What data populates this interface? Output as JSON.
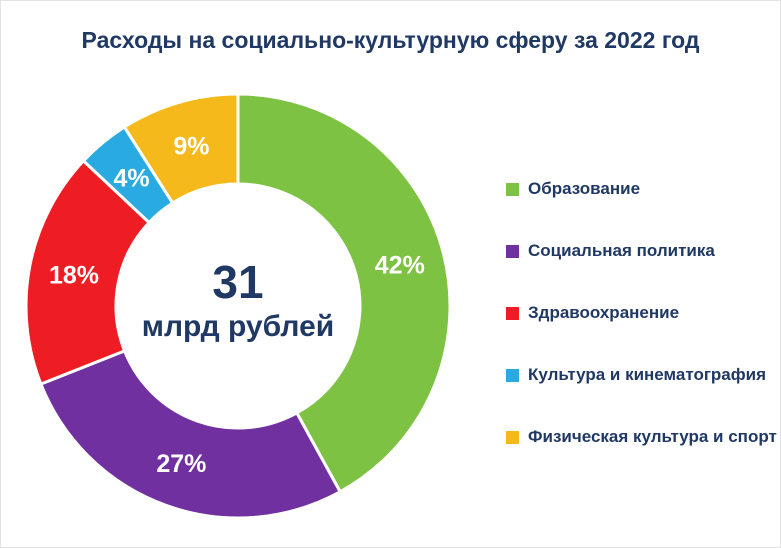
{
  "page": {
    "title": "Расходы на социально-культурную сферу за 2022 год",
    "title_color": "#203864",
    "background": "#ffffff"
  },
  "chart_data": {
    "type": "pie",
    "subtype": "donut",
    "title": "Расходы на социально-культурную сферу за 2022 год",
    "center_value": "31",
    "center_label": "млрд рублей",
    "total_label": "31 млрд рублей",
    "legend_position": "right",
    "start_angle_deg": 0,
    "direction": "clockwise",
    "slices": [
      {
        "name": "Образование",
        "percent": 42,
        "label": "42%",
        "color": "#7DC243"
      },
      {
        "name": "Социальная политика",
        "percent": 27,
        "label": "27%",
        "color": "#7030A0"
      },
      {
        "name": "Здравоохранение",
        "percent": 18,
        "label": "18%",
        "color": "#EE1D23"
      },
      {
        "name": "Культура и кинематография",
        "percent": 4,
        "label": "4%",
        "color": "#29ABE2"
      },
      {
        "name": "Физическая культура и спорт",
        "percent": 9,
        "label": "9%",
        "color": "#F5B91C"
      }
    ]
  }
}
